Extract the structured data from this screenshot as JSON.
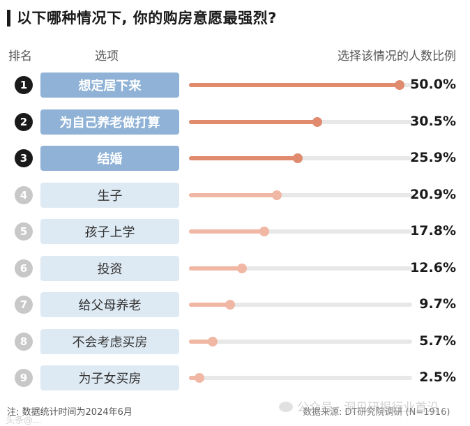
{
  "title": "以下哪种情况下, 你的购房意愿最强烈?",
  "headers": {
    "rank": "排名",
    "option": "选项",
    "share": "选择该情况的人数比例"
  },
  "colors": {
    "top_box": "#8fb2d6",
    "other_box": "#deeaf3",
    "top_badge": "#1a1a1a",
    "other_badge": "#c8c8c8",
    "top_bar": "#e08a6e",
    "other_bar": "#f0b7a4",
    "track": "#e8e8e8"
  },
  "chart_data": {
    "type": "bar",
    "orientation": "horizontal",
    "title": "以下哪种情况下, 你的购房意愿最强烈?",
    "xlim": [
      0,
      50
    ],
    "items": [
      {
        "rank": "1",
        "label": "想定居下来",
        "value": 50.0,
        "value_label": "50.0%"
      },
      {
        "rank": "2",
        "label": "为自己养老做打算",
        "value": 30.5,
        "value_label": "30.5%"
      },
      {
        "rank": "3",
        "label": "结婚",
        "value": 25.9,
        "value_label": "25.9%"
      },
      {
        "rank": "4",
        "label": "生子",
        "value": 20.9,
        "value_label": "20.9%"
      },
      {
        "rank": "5",
        "label": "孩子上学",
        "value": 17.8,
        "value_label": "17.8%"
      },
      {
        "rank": "6",
        "label": "投资",
        "value": 12.6,
        "value_label": "12.6%"
      },
      {
        "rank": "7",
        "label": "给父母养老",
        "value": 9.7,
        "value_label": "9.7%"
      },
      {
        "rank": "8",
        "label": "不会考虑买房",
        "value": 5.7,
        "value_label": "5.7%"
      },
      {
        "rank": "9",
        "label": "为子女买房",
        "value": 2.5,
        "value_label": "2.5%"
      }
    ]
  },
  "footer": {
    "note": "注: 数据统计时间为2024年6月",
    "source": "数据来源: DT研究院调研 (N=1916)",
    "watermark_text": "公众号 · 洞见研报行业首沿",
    "watermark_left": "头条@..."
  }
}
